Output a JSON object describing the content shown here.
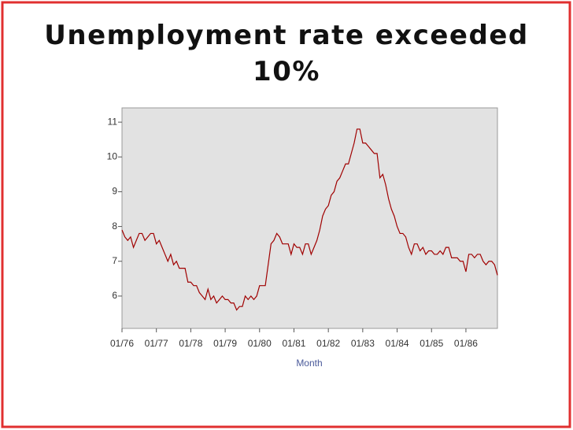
{
  "chart_data": {
    "type": "line",
    "title": "Unemployment rate exceeded 10%",
    "x_label": "Month",
    "color": "#a00000",
    "x": [
      "01/76",
      "02/76",
      "03/76",
      "04/76",
      "05/76",
      "06/76",
      "07/76",
      "08/76",
      "09/76",
      "10/76",
      "11/76",
      "12/76",
      "01/77",
      "02/77",
      "03/77",
      "04/77",
      "05/77",
      "06/77",
      "07/77",
      "08/77",
      "09/77",
      "10/77",
      "11/77",
      "12/77",
      "01/78",
      "02/78",
      "03/78",
      "04/78",
      "05/78",
      "06/78",
      "07/78",
      "08/78",
      "09/78",
      "10/78",
      "11/78",
      "12/78",
      "01/79",
      "02/79",
      "03/79",
      "04/79",
      "05/79",
      "06/79",
      "07/79",
      "08/79",
      "09/79",
      "10/79",
      "11/79",
      "12/79",
      "01/80",
      "02/80",
      "03/80",
      "04/80",
      "05/80",
      "06/80",
      "07/80",
      "08/80",
      "09/80",
      "10/80",
      "11/80",
      "12/80",
      "01/81",
      "02/81",
      "03/81",
      "04/81",
      "05/81",
      "06/81",
      "07/81",
      "08/81",
      "09/81",
      "10/81",
      "11/81",
      "12/81",
      "01/82",
      "02/82",
      "03/82",
      "04/82",
      "05/82",
      "06/82",
      "07/82",
      "08/82",
      "09/82",
      "10/82",
      "11/82",
      "12/82",
      "01/83",
      "02/83",
      "03/83",
      "04/83",
      "05/83",
      "06/83",
      "07/83",
      "08/83",
      "09/83",
      "10/83",
      "11/83",
      "12/83",
      "01/84",
      "02/84",
      "03/84",
      "04/84",
      "05/84",
      "06/84",
      "07/84",
      "08/84",
      "09/84",
      "10/84",
      "11/84",
      "12/84",
      "01/85",
      "02/85",
      "03/85",
      "04/85",
      "05/85",
      "06/85",
      "07/85",
      "08/85",
      "09/85",
      "10/85",
      "11/85",
      "12/85",
      "01/86",
      "02/86",
      "03/86",
      "04/86",
      "05/86",
      "06/86",
      "07/86",
      "08/86",
      "09/86",
      "10/86",
      "11/86",
      "12/86"
    ],
    "values": [
      7.9,
      7.7,
      7.6,
      7.7,
      7.4,
      7.6,
      7.8,
      7.8,
      7.6,
      7.7,
      7.8,
      7.8,
      7.5,
      7.6,
      7.4,
      7.2,
      7.0,
      7.2,
      6.9,
      7.0,
      6.8,
      6.8,
      6.8,
      6.4,
      6.4,
      6.3,
      6.3,
      6.1,
      6.0,
      5.9,
      6.2,
      5.9,
      6.0,
      5.8,
      5.9,
      6.0,
      5.9,
      5.9,
      5.8,
      5.8,
      5.6,
      5.7,
      5.7,
      6.0,
      5.9,
      6.0,
      5.9,
      6.0,
      6.3,
      6.3,
      6.3,
      6.9,
      7.5,
      7.6,
      7.8,
      7.7,
      7.5,
      7.5,
      7.5,
      7.2,
      7.5,
      7.4,
      7.4,
      7.2,
      7.5,
      7.5,
      7.2,
      7.4,
      7.6,
      7.9,
      8.3,
      8.5,
      8.6,
      8.9,
      9.0,
      9.3,
      9.4,
      9.6,
      9.8,
      9.8,
      10.1,
      10.4,
      10.8,
      10.8,
      10.4,
      10.4,
      10.3,
      10.2,
      10.1,
      10.1,
      9.4,
      9.5,
      9.2,
      8.8,
      8.5,
      8.3,
      8.0,
      7.8,
      7.8,
      7.7,
      7.4,
      7.2,
      7.5,
      7.5,
      7.3,
      7.4,
      7.2,
      7.3,
      7.3,
      7.2,
      7.2,
      7.3,
      7.2,
      7.4,
      7.4,
      7.1,
      7.1,
      7.1,
      7.0,
      7.0,
      6.7,
      7.2,
      7.2,
      7.1,
      7.2,
      7.2,
      7.0,
      6.9,
      7.0,
      7.0,
      6.9,
      6.6
    ],
    "xticks": [
      "01/76",
      "01/77",
      "01/78",
      "01/79",
      "01/80",
      "01/81",
      "01/82",
      "01/83",
      "01/84",
      "01/85",
      "01/86"
    ],
    "ylim": [
      5.07,
      11.41
    ],
    "yticks": [
      6,
      7,
      8,
      9,
      10,
      11
    ]
  }
}
